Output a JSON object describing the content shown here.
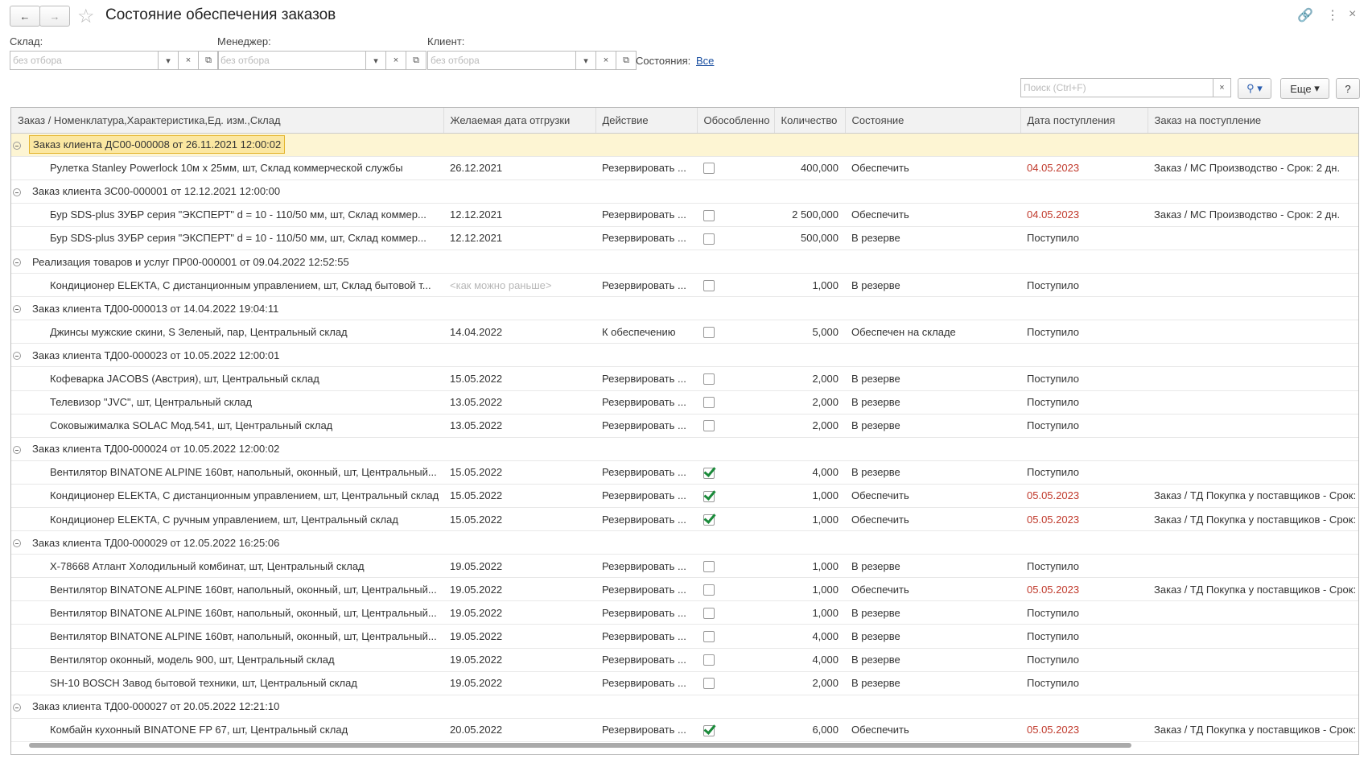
{
  "header": {
    "title": "Состояние обеспечения заказов",
    "filters": [
      {
        "label": "Склад:",
        "placeholder": "без отбора"
      },
      {
        "label": "Менеджер:",
        "placeholder": "без отбора"
      },
      {
        "label": "Клиент:",
        "placeholder": "без отбора"
      }
    ],
    "states_label": "Состояния:",
    "states_link": "Все",
    "search_placeholder": "Поиск (Ctrl+F)",
    "more": "Еще",
    "help": "?"
  },
  "table": {
    "columns": [
      "Заказ / Номенклатура,Характеристика,Ед. изм.,Склад",
      "Желаемая дата отгрузки",
      "Действие",
      "Обособленно",
      "Количество",
      "Состояние",
      "Дата поступления",
      "Заказ на поступление"
    ],
    "rows": [
      {
        "group": "Заказ клиента ДС00-000008 от 26.11.2021 12:00:02",
        "selected": true
      },
      {
        "cells": [
          "Рулетка Stanley Powerlock 10м х 25мм, шт, Склад коммерческой службы",
          "26.12.2021",
          "Резервировать ...",
          "",
          "400,000",
          "Обеспечить",
          "04.05.2023",
          "Заказ / МС Производство - Срок: 2 дн."
        ],
        "checked": false,
        "arrival_color": "#c0392b"
      },
      {
        "group": "Заказ клиента ЗС00-000001 от 12.12.2021 12:00:00"
      },
      {
        "cells": [
          "Бур SDS-plus ЗУБР серия \"ЭКСПЕРТ\" d = 10 - 110/50 мм, шт, Склад коммер...",
          "12.12.2021",
          "Резервировать ...",
          "",
          "2 500,000",
          "Обеспечить",
          "04.05.2023",
          "Заказ / МС Производство - Срок: 2 дн."
        ],
        "checked": false,
        "arrival_color": "#c0392b"
      },
      {
        "cells": [
          "Бур SDS-plus ЗУБР серия \"ЭКСПЕРТ\" d = 10 - 110/50 мм, шт, Склад коммер...",
          "12.12.2021",
          "Резервировать ...",
          "",
          "500,000",
          "В резерве",
          "Поступило",
          ""
        ],
        "checked": false
      },
      {
        "group": "Реализация товаров и услуг ПР00-000001 от 09.04.2022 12:52:55"
      },
      {
        "cells": [
          "Кондиционер ELEKTA, С дистанционным управлением, шт, Склад бытовой т...",
          "<как можно раньше>",
          "Резервировать ...",
          "",
          "1,000",
          "В резерве",
          "Поступило",
          ""
        ],
        "checked": false,
        "date_color": "#b8b8b8"
      },
      {
        "group": "Заказ клиента ТД00-000013 от 14.04.2022 19:04:11"
      },
      {
        "cells": [
          "Джинсы мужские скини, S Зеленый, пар, Центральный склад",
          "14.04.2022",
          "К обеспечению",
          "",
          "5,000",
          "Обеспечен на складе",
          "Поступило",
          ""
        ],
        "checked": false
      },
      {
        "group": "Заказ клиента ТД00-000023 от 10.05.2022 12:00:01"
      },
      {
        "cells": [
          "Кофеварка JACOBS (Австрия), шт, Центральный склад",
          "15.05.2022",
          "Резервировать ...",
          "",
          "2,000",
          "В резерве",
          "Поступило",
          ""
        ],
        "checked": false
      },
      {
        "cells": [
          "Телевизор \"JVC\", шт, Центральный склад",
          "13.05.2022",
          "Резервировать ...",
          "",
          "2,000",
          "В резерве",
          "Поступило",
          ""
        ],
        "checked": false
      },
      {
        "cells": [
          "Соковыжималка  SOLAC  Мод.541, шт, Центральный склад",
          "13.05.2022",
          "Резервировать ...",
          "",
          "2,000",
          "В резерве",
          "Поступило",
          ""
        ],
        "checked": false
      },
      {
        "group": "Заказ клиента ТД00-000024 от 10.05.2022 12:00:02"
      },
      {
        "cells": [
          "Вентилятор BINATONE ALPINE 160вт, напольный, оконный, шт, Центральный...",
          "15.05.2022",
          "Резервировать ...",
          "",
          "4,000",
          "В резерве",
          "Поступило",
          ""
        ],
        "checked": true
      },
      {
        "cells": [
          "Кондиционер ELEKTA, С дистанционным управлением, шт, Центральный склад",
          "15.05.2022",
          "Резервировать ...",
          "",
          "1,000",
          "Обеспечить",
          "05.05.2023",
          "Заказ / ТД Покупка у поставщиков - Срок:"
        ],
        "checked": true,
        "arrival_color": "#c0392b"
      },
      {
        "cells": [
          "Кондиционер ELEKTA, С ручным управлением, шт, Центральный склад",
          "15.05.2022",
          "Резервировать ...",
          "",
          "1,000",
          "Обеспечить",
          "05.05.2023",
          "Заказ / ТД Покупка у поставщиков - Срок:"
        ],
        "checked": true,
        "arrival_color": "#c0392b"
      },
      {
        "group": "Заказ клиента ТД00-000029 от 12.05.2022 16:25:06"
      },
      {
        "cells": [
          "Х-78668 Атлант Холодильный комбинат, шт, Центральный склад",
          "19.05.2022",
          "Резервировать ...",
          "",
          "1,000",
          "В резерве",
          "Поступило",
          ""
        ],
        "checked": false
      },
      {
        "cells": [
          "Вентилятор BINATONE ALPINE 160вт, напольный, оконный, шт, Центральный...",
          "19.05.2022",
          "Резервировать ...",
          "",
          "1,000",
          "Обеспечить",
          "05.05.2023",
          "Заказ / ТД Покупка у поставщиков - Срок:"
        ],
        "checked": false,
        "arrival_color": "#c0392b"
      },
      {
        "cells": [
          "Вентилятор BINATONE ALPINE 160вт, напольный, оконный, шт, Центральный...",
          "19.05.2022",
          "Резервировать ...",
          "",
          "1,000",
          "В резерве",
          "Поступило",
          ""
        ],
        "checked": false
      },
      {
        "cells": [
          "Вентилятор BINATONE ALPINE 160вт, напольный, оконный, шт, Центральный...",
          "19.05.2022",
          "Резервировать ...",
          "",
          "4,000",
          "В резерве",
          "Поступило",
          ""
        ],
        "checked": false
      },
      {
        "cells": [
          "Вентилятор оконный, модель 900, шт, Центральный склад",
          "19.05.2022",
          "Резервировать ...",
          "",
          "4,000",
          "В резерве",
          "Поступило",
          ""
        ],
        "checked": false
      },
      {
        "cells": [
          "SH-10 BOSCH Завод бытовой техники, шт, Центральный склад",
          "19.05.2022",
          "Резервировать ...",
          "",
          "2,000",
          "В резерве",
          "Поступило",
          ""
        ],
        "checked": false
      },
      {
        "group": "Заказ клиента ТД00-000027 от 20.05.2022 12:21:10"
      },
      {
        "cells": [
          "Комбайн кухонный BINATONE FP 67, шт, Центральный склад",
          "20.05.2022",
          "Резервировать ...",
          "",
          "6,000",
          "Обеспечить",
          "05.05.2023",
          "Заказ / ТД Покупка у поставщиков - Срок:"
        ],
        "checked": true,
        "arrival_color": "#c0392b"
      }
    ]
  }
}
